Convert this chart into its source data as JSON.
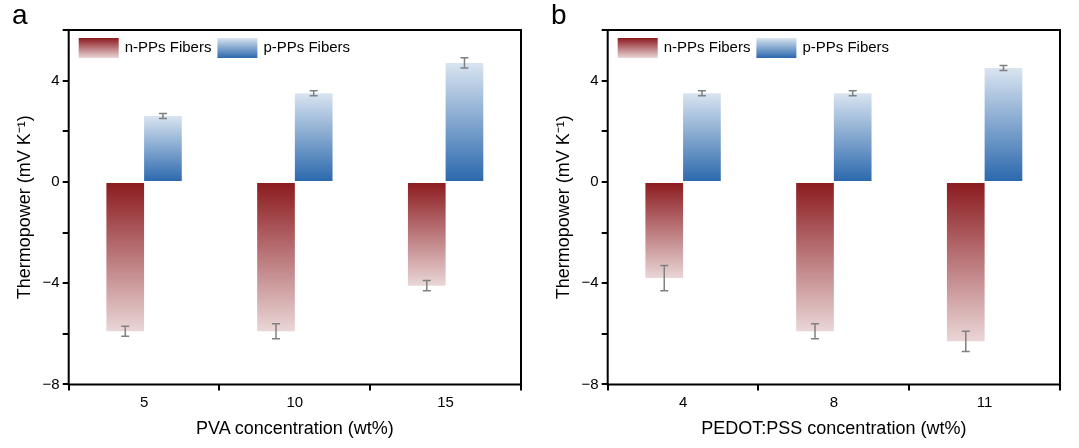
{
  "chart_data": [
    {
      "type": "bar",
      "annotations": [
        "a"
      ],
      "xlabel": "PVA concentration (wt%)",
      "ylabel": "Thermopower (mV K⁻¹)",
      "categories": [
        "5",
        "10",
        "15"
      ],
      "series": [
        {
          "name": "n-PPs Fibers",
          "color": "#8b1a1e",
          "values": [
            -5.9,
            -5.9,
            -4.1
          ],
          "errors": [
            0.2,
            0.3,
            0.2
          ]
        },
        {
          "name": "p-PPs Fibers",
          "color": "#2a68ad",
          "values": [
            2.6,
            3.5,
            4.7
          ],
          "errors": [
            0.1,
            0.1,
            0.2
          ]
        }
      ],
      "ylim": [
        -8,
        6
      ],
      "yticks": [
        -8,
        {
          "value": -6,
          "label": null
        },
        -4,
        {
          "value": -2,
          "label": null
        },
        0,
        {
          "value": 2,
          "label": null
        },
        4,
        {
          "value": 6,
          "label": null
        }
      ],
      "legend": "top left"
    },
    {
      "type": "bar",
      "annotations": [
        "b"
      ],
      "xlabel": "PEDOT:PSS concentration (wt%)",
      "ylabel": "Thermopower (mV K⁻¹)",
      "categories": [
        "4",
        "8",
        "11"
      ],
      "series": [
        {
          "name": "n-PPs Fibers",
          "color": "#8b1a1e",
          "values": [
            -3.8,
            -5.9,
            -6.3
          ],
          "errors": [
            0.5,
            0.3,
            0.4
          ]
        },
        {
          "name": "p-PPs Fibers",
          "color": "#2a68ad",
          "values": [
            3.5,
            3.5,
            4.5
          ],
          "errors": [
            0.1,
            0.1,
            0.1
          ]
        }
      ],
      "ylim": [
        -8,
        6
      ],
      "yticks": [
        -8,
        {
          "value": -6,
          "label": null
        },
        -4,
        {
          "value": -2,
          "label": null
        },
        0,
        {
          "value": 2,
          "label": null
        },
        4,
        {
          "value": 6,
          "label": null
        }
      ],
      "legend": "top left"
    }
  ]
}
